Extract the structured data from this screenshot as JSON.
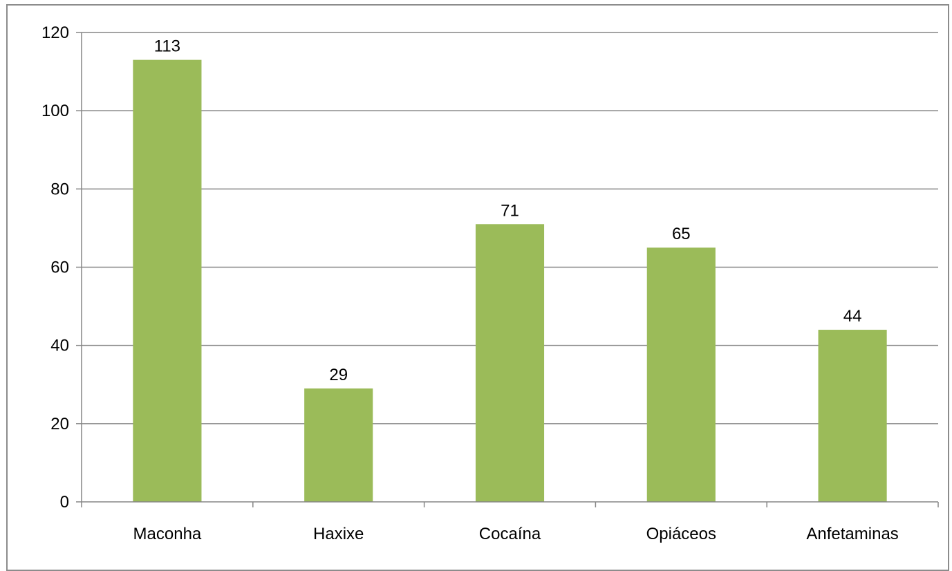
{
  "chart_data": {
    "type": "bar",
    "categories": [
      "Maconha",
      "Haxixe",
      "Cocaína",
      "Opiáceos",
      "Anfetaminas"
    ],
    "values": [
      113,
      29,
      71,
      65,
      44
    ],
    "data_labels": [
      "113",
      "29",
      "71",
      "65",
      "44"
    ],
    "y_ticks": [
      "0",
      "20",
      "40",
      "60",
      "80",
      "100",
      "120"
    ],
    "ylim": [
      0,
      120
    ],
    "ytick_step": 20,
    "grid": true,
    "legend": "none",
    "bar_color": "#9bbb59",
    "grid_color": "#868686",
    "axis_color": "#868686"
  }
}
